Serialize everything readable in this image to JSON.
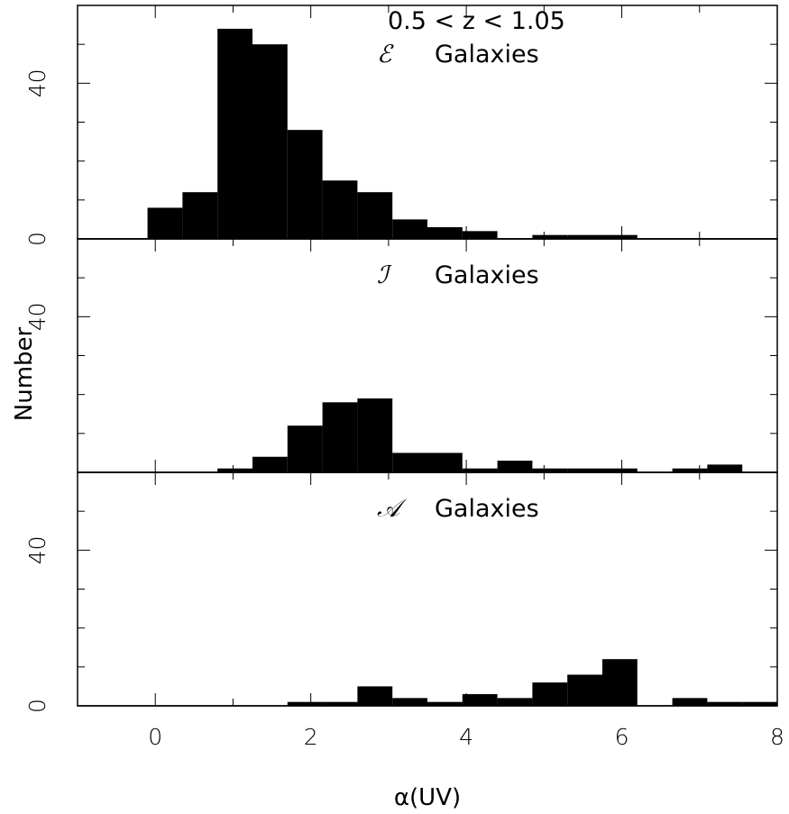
{
  "chart_data": {
    "type": "bar",
    "figure_title": "0.5 < z < 1.05",
    "xlabel": "α(UV)",
    "ylabel": "Number",
    "xlim": [
      -1,
      8
    ],
    "x_ticks": [
      0,
      2,
      4,
      6,
      8
    ],
    "bar_width": 0.45,
    "panels": [
      {
        "script_letter": "ℰ",
        "label": "Galaxies",
        "ylim": [
          0,
          60
        ],
        "y_tick_labels": [
          0,
          40
        ],
        "y_minor_ticks": [
          10,
          20,
          30,
          50
        ],
        "bins_left": [
          -0.1,
          0.35,
          0.8,
          1.25,
          1.7,
          2.15,
          2.6,
          3.05,
          3.5,
          3.95,
          4.4,
          4.85,
          5.3,
          5.75,
          6.2
        ],
        "values": [
          8,
          12,
          54,
          50,
          28,
          15,
          12,
          5,
          3,
          2,
          0,
          1,
          1,
          1,
          0
        ]
      },
      {
        "script_letter": "ℐ",
        "label": "Galaxies",
        "ylim": [
          0,
          60
        ],
        "y_tick_labels": [
          40
        ],
        "y_minor_ticks": [
          10,
          20,
          30,
          50
        ],
        "bins_left": [
          0.8,
          1.25,
          1.7,
          2.15,
          2.6,
          3.05,
          3.5,
          3.95,
          4.4,
          4.85,
          5.3,
          5.75,
          6.2,
          6.65,
          7.1
        ],
        "values": [
          1,
          4,
          12,
          18,
          19,
          5,
          5,
          1,
          3,
          1,
          1,
          1,
          0,
          1,
          2
        ]
      },
      {
        "script_letter": "𝒜",
        "label": "Galaxies",
        "ylim": [
          0,
          60
        ],
        "y_tick_labels": [
          0,
          40
        ],
        "y_minor_ticks": [
          10,
          20,
          30,
          50
        ],
        "bins_left": [
          1.7,
          2.15,
          2.6,
          3.05,
          3.5,
          3.95,
          4.4,
          4.85,
          5.3,
          5.75,
          6.2,
          6.65,
          7.1,
          7.55
        ],
        "values": [
          1,
          1,
          5,
          2,
          1,
          3,
          2,
          6,
          8,
          12,
          0,
          2,
          1,
          1
        ]
      }
    ]
  }
}
